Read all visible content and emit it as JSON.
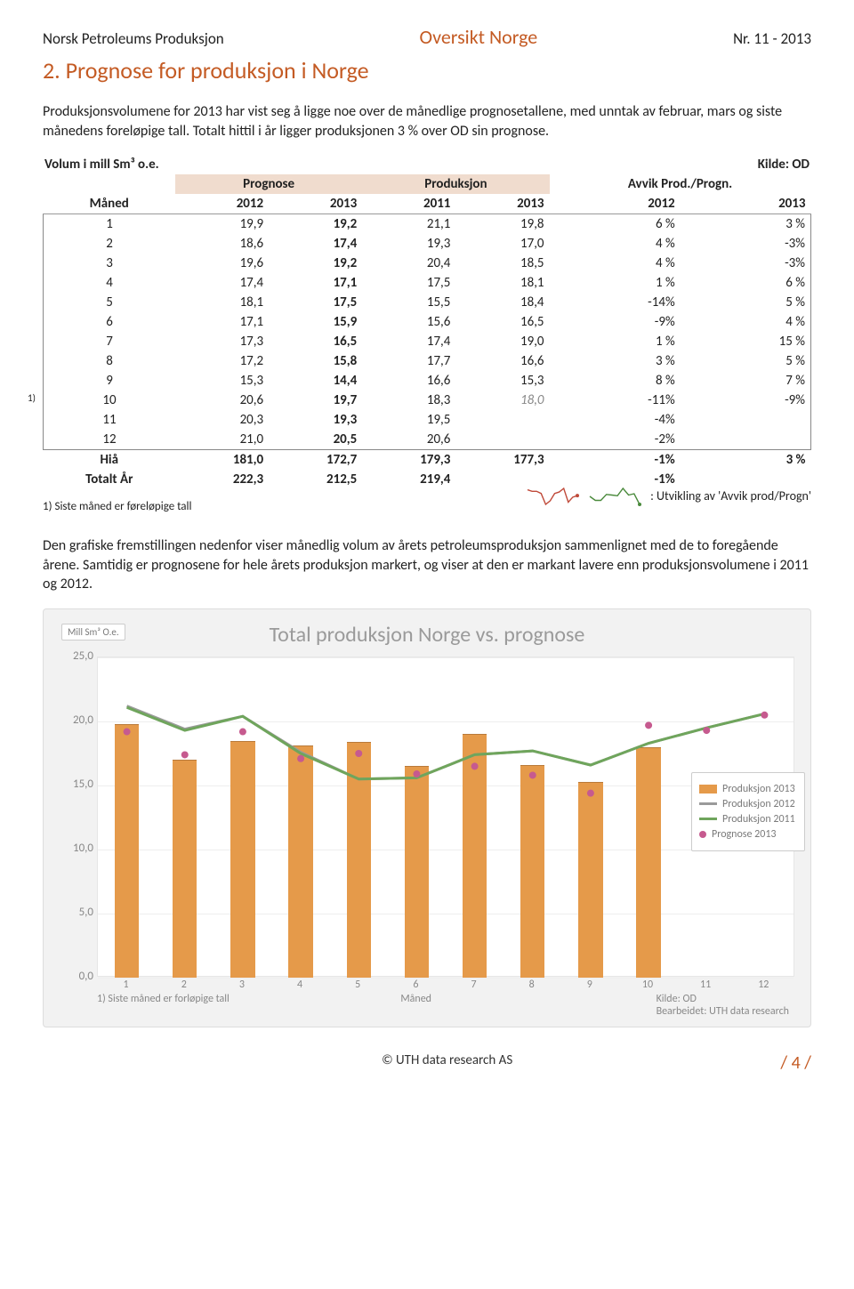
{
  "header": {
    "left": "Norsk Petroleums Produksjon",
    "center": "Oversikt Norge",
    "right": "Nr. 11 - 2013"
  },
  "title": "2. Prognose for produksjon i Norge",
  "intro": "Produksjonsvolumene for 2013 har vist seg å ligge noe over de månedlige prognosetallene, med unntak av februar, mars og siste månedens foreløpige tall. Totalt hittil i år ligger produksjonen 3 % over OD sin prognose.",
  "table": {
    "caption_left": "Volum i mill Sm³ o.e.",
    "caption_right": "Kilde: OD",
    "group_headers": [
      "Prognose",
      "Produksjon",
      "Avvik Prod./Progn."
    ],
    "month_label": "Måned",
    "year_headers": [
      "2012",
      "2013",
      "2011",
      "2013",
      "2012",
      "2013"
    ],
    "rows": [
      {
        "m": "1",
        "c": [
          "19,9",
          "19,2",
          "21,1",
          "19,8",
          "6 %",
          "3 %"
        ]
      },
      {
        "m": "2",
        "c": [
          "18,6",
          "17,4",
          "19,3",
          "17,0",
          "4 %",
          "-3%"
        ]
      },
      {
        "m": "3",
        "c": [
          "19,6",
          "19,2",
          "20,4",
          "18,5",
          "4 %",
          "-3%"
        ]
      },
      {
        "m": "4",
        "c": [
          "17,4",
          "17,1",
          "17,5",
          "18,1",
          "1 %",
          "6 %"
        ]
      },
      {
        "m": "5",
        "c": [
          "18,1",
          "17,5",
          "15,5",
          "18,4",
          "-14%",
          "5 %"
        ]
      },
      {
        "m": "6",
        "c": [
          "17,1",
          "15,9",
          "15,6",
          "16,5",
          "-9%",
          "4 %"
        ]
      },
      {
        "m": "7",
        "c": [
          "17,3",
          "16,5",
          "17,4",
          "19,0",
          "1 %",
          "15 %"
        ]
      },
      {
        "m": "8",
        "c": [
          "17,2",
          "15,8",
          "17,7",
          "16,6",
          "3 %",
          "5 %"
        ]
      },
      {
        "m": "9",
        "c": [
          "15,3",
          "14,4",
          "16,6",
          "15,3",
          "8 %",
          "7 %"
        ]
      },
      {
        "m": "10",
        "c": [
          "20,6",
          "19,7",
          "18,3",
          "18,0",
          "-11%",
          "-9%"
        ],
        "italic4": true,
        "note": "1)"
      },
      {
        "m": "11",
        "c": [
          "20,3",
          "19,3",
          "19,5",
          "",
          "-4%",
          ""
        ]
      },
      {
        "m": "12",
        "c": [
          "21,0",
          "20,5",
          "20,6",
          "",
          "-2%",
          ""
        ]
      }
    ],
    "hia_label": "Hiå",
    "hia": [
      "181,0",
      "172,7",
      "179,3",
      "177,3",
      "-1%",
      "3 %"
    ],
    "tot_label": "Totalt År",
    "tot": [
      "222,3",
      "212,5",
      "219,4",
      "",
      "-1%",
      ""
    ],
    "footnote": "1) Siste måned er føreløpige tall",
    "spark_label": ": Utvikling av 'Avvik prod/Progn'",
    "spark_color_a": "#c04a3a",
    "spark_color_b": "#4a8a3c",
    "spark_a": [
      6,
      4,
      4,
      1,
      -14,
      -9,
      1,
      3,
      8,
      -11,
      -4,
      -2
    ],
    "spark_b": [
      3,
      -3,
      -3,
      6,
      5,
      4,
      15,
      5,
      7,
      -9
    ]
  },
  "para2": "Den grafiske fremstillingen nedenfor viser månedlig volum av årets petroleumsproduksjon sammenlignet med de to foregående årene. Samtidig er prognosene for hele årets produksjon markert, og viser at den er markant lavere enn produksjonsvolumene i 2011 og 2012.",
  "chart": {
    "type": "grouped-bar-with-lines",
    "unit": "Mill Sm³ O.e.",
    "title": "Total produksjon Norge vs. prognose",
    "y": {
      "min": 0,
      "max": 25,
      "ticks": [
        0,
        5,
        10,
        15,
        20,
        25
      ],
      "tick_labels": [
        "0,0",
        "5,0",
        "10,0",
        "15,0",
        "20,0",
        "25,0"
      ]
    },
    "x_labels": [
      "1",
      "2",
      "3",
      "4",
      "5",
      "6",
      "7",
      "8",
      "9",
      "10",
      "11",
      "12"
    ],
    "x_axis_title": "Måned",
    "series": {
      "prod2013": {
        "label": "Produksjon 2013",
        "color": "#e59a4a",
        "type": "bar",
        "values": [
          19.8,
          17.0,
          18.5,
          18.1,
          18.4,
          16.5,
          19.0,
          16.6,
          15.3,
          18.0,
          null,
          null
        ]
      },
      "prod2012": {
        "label": "Produksjon 2012",
        "color": "#9a9a9a",
        "type": "line",
        "values": [
          21.2,
          19.4,
          20.4,
          17.6,
          15.5,
          15.6,
          17.4,
          17.7,
          16.6,
          18.3,
          19.5,
          20.6
        ]
      },
      "prod2011": {
        "label": "Produksjon 2011",
        "color": "#6fa55c",
        "type": "line",
        "values": [
          21.1,
          19.3,
          20.4,
          17.5,
          15.5,
          15.6,
          17.4,
          17.7,
          16.6,
          18.3,
          19.5,
          20.6
        ]
      },
      "progn2013": {
        "label": "Prognose 2013",
        "color": "#c65a8f",
        "type": "dot",
        "values": [
          19.2,
          17.4,
          19.2,
          17.1,
          17.5,
          15.9,
          16.5,
          15.8,
          14.4,
          19.7,
          19.3,
          20.5
        ]
      }
    },
    "background": "#ffffff",
    "card_bg": "#f2f2f2",
    "grid_color": "#eeeeee",
    "foot_left": "1) Siste måned er forløpige tall",
    "foot_right_1": "Kilde:  OD",
    "foot_right_2": "Bearbeidet:  UTH data research"
  },
  "footer": {
    "copy": "© UTH data research AS",
    "page": "/ 4 /"
  }
}
